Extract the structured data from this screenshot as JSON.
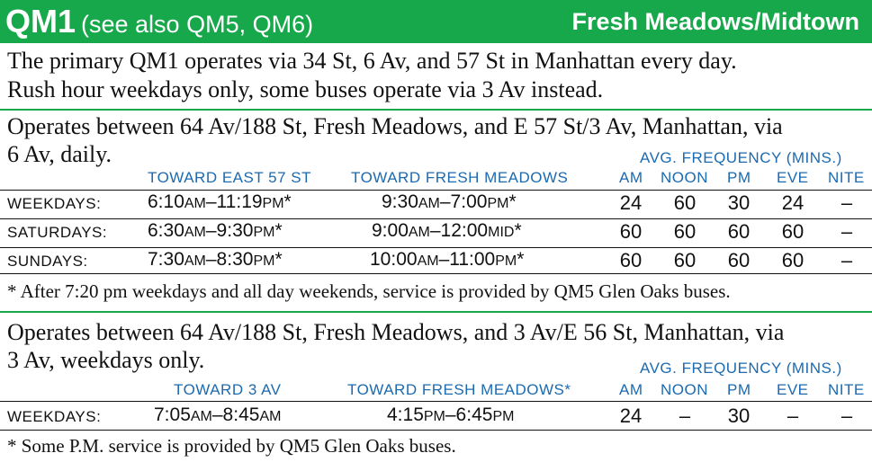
{
  "header": {
    "route": "QM1",
    "see_also": "(see also QM5, QM6)",
    "destination": "Fresh Meadows/Midtown"
  },
  "intro": {
    "line1": "The primary QM1 operates via 34 St, 6 Av, and 57 St in Manhattan every day.",
    "line2": "Rush hour weekdays only, some buses operate via 3 Av instead."
  },
  "section1": {
    "desc_line1": "Operates between 64 Av/188 St, Fresh Meadows, and E 57 St/3 Av, Manhattan, via",
    "desc_line2": "6 Av, daily.",
    "freq_title": "AVG. FREQUENCY (MINS.)",
    "col_to": "TOWARD EAST 57 ST",
    "col_from": "TOWARD FRESH MEADOWS",
    "periods": [
      "AM",
      "NOON",
      "PM",
      "EVE",
      "NITE"
    ],
    "rows": [
      {
        "day": "WEEKDAYS:",
        "to_a": "6:10",
        "to_a_s": "AM",
        "to_b": "–11:19",
        "to_b_s": "PM",
        "to_m": "*",
        "from_a": "9:30",
        "from_a_s": "AM",
        "from_b": "–7:00",
        "from_b_s": "PM",
        "from_m": "*",
        "freq": [
          "24",
          "60",
          "30",
          "24",
          "–"
        ]
      },
      {
        "day": "SATURDAYS:",
        "to_a": "6:30",
        "to_a_s": "AM",
        "to_b": "–9:30",
        "to_b_s": "PM",
        "to_m": "*",
        "from_a": "9:00",
        "from_a_s": "AM",
        "from_b": "–12:00",
        "from_b_s": "MID",
        "from_m": "*",
        "freq": [
          "60",
          "60",
          "60",
          "60",
          "–"
        ]
      },
      {
        "day": "SUNDAYS:",
        "to_a": "7:30",
        "to_a_s": "AM",
        "to_b": "–8:30",
        "to_b_s": "PM",
        "to_m": "*",
        "from_a": "10:00",
        "from_a_s": "AM",
        "from_b": "–11:00",
        "from_b_s": "PM",
        "from_m": "*",
        "freq": [
          "60",
          "60",
          "60",
          "60",
          "–"
        ]
      }
    ],
    "footnote": "* After 7:20 pm weekdays and all day weekends, service is provided by QM5 Glen Oaks buses."
  },
  "section2": {
    "desc_line1": "Operates between 64 Av/188 St, Fresh Meadows, and 3 Av/E 56 St, Manhattan, via",
    "desc_line2": "3 Av, weekdays only.",
    "freq_title": "AVG. FREQUENCY (MINS.)",
    "col_to": "TOWARD 3 AV",
    "col_from": "TOWARD FRESH MEADOWS*",
    "periods": [
      "AM",
      "NOON",
      "PM",
      "EVE",
      "NITE"
    ],
    "rows": [
      {
        "day": "WEEKDAYS:",
        "to_a": "7:05",
        "to_a_s": "AM",
        "to_b": "–8:45",
        "to_b_s": "AM",
        "to_m": "",
        "from_a": "4:15",
        "from_a_s": "PM",
        "from_b": "–6:45",
        "from_b_s": "PM",
        "from_m": "",
        "freq": [
          "24",
          "–",
          "30",
          "–",
          "–"
        ]
      }
    ],
    "footnote": "* Some P.M. service is provided by QM5 Glen Oaks buses."
  }
}
